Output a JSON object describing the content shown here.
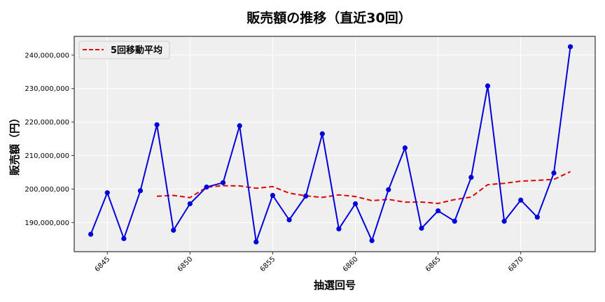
{
  "chart_data": {
    "type": "line",
    "title": "販売額の推移（直近30回）",
    "xlabel": "抽選回号",
    "ylabel": "販売額（円）",
    "x": [
      6844,
      6845,
      6846,
      6847,
      6848,
      6849,
      6850,
      6851,
      6852,
      6853,
      6854,
      6855,
      6856,
      6857,
      6858,
      6859,
      6860,
      6861,
      6862,
      6863,
      6864,
      6865,
      6866,
      6867,
      6868,
      6869,
      6870,
      6871,
      6872,
      6873
    ],
    "xticks": [
      6845,
      6850,
      6855,
      6860,
      6865,
      6870
    ],
    "yticks": [
      190000000,
      200000000,
      210000000,
      220000000,
      230000000,
      240000000
    ],
    "ytick_labels": [
      "190,000,000",
      "200,000,000",
      "210,000,000",
      "220,000,000",
      "230,000,000",
      "240,000,000"
    ],
    "xlim": [
      6843.0,
      6874.5
    ],
    "ylim": [
      181300000,
      245600000
    ],
    "grid": true,
    "legend_position": "upper left",
    "series": [
      {
        "name": "販売額",
        "color": "#0000dd",
        "style": "solid",
        "marker": "circle",
        "show_in_legend": false,
        "values": [
          186500000,
          198900000,
          185200000,
          199500000,
          219200000,
          187700000,
          195600000,
          200600000,
          201900000,
          218900000,
          184200000,
          198100000,
          190800000,
          197900000,
          216500000,
          188100000,
          195600000,
          184600000,
          199800000,
          212300000,
          188300000,
          193500000,
          190400000,
          203500000,
          230800000,
          190400000,
          196700000,
          191600000,
          204800000,
          242500000
        ]
      },
      {
        "name": "5回移動平均",
        "color": "#e00000",
        "style": "dashed",
        "marker": "none",
        "show_in_legend": true,
        "start_index": 4,
        "values": [
          197860000,
          198100000,
          197440000,
          200520000,
          201000000,
          200940000,
          200240000,
          200740000,
          198780000,
          197980000,
          197500000,
          198280000,
          197780000,
          196540000,
          196920000,
          196080000,
          196120000,
          195700000,
          196860000,
          197600000,
          201300000,
          201720000,
          202360000,
          202600000,
          202860000,
          205200000
        ]
      }
    ]
  },
  "legend": {
    "label": "5回移動平均"
  },
  "colors": {
    "plot_bg": "#efefef",
    "grid": "#ffffff",
    "frame": "#333333"
  }
}
